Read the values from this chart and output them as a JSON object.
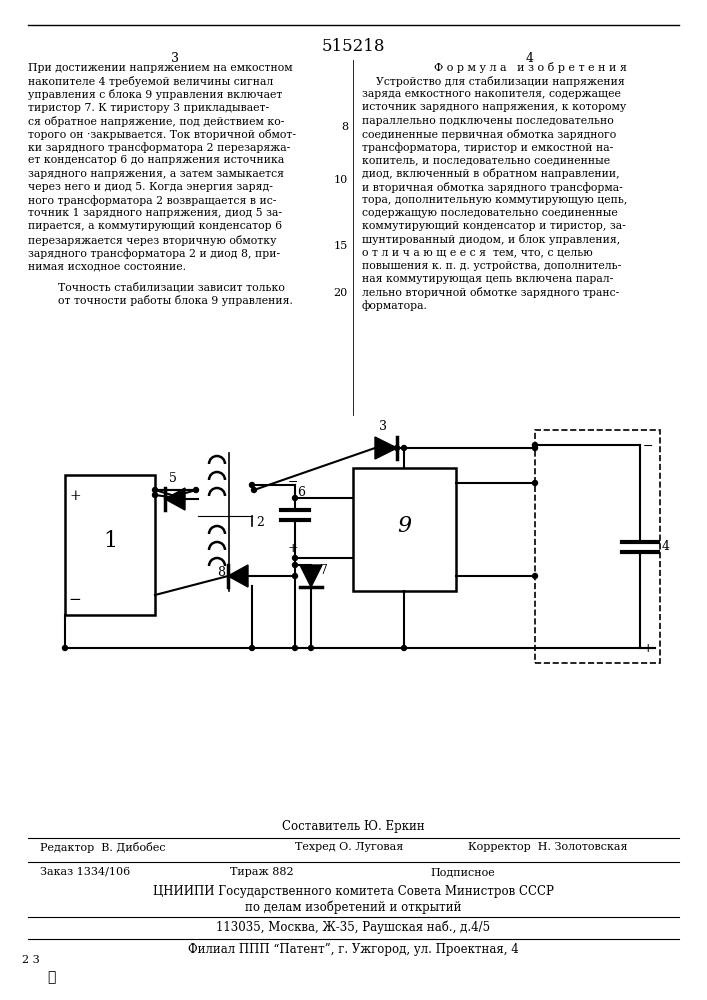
{
  "title": "515218",
  "page_left": "3",
  "page_right": "4",
  "col2_header": "Ф о р м у л а   и з о б р е т е н и я",
  "col1_lines": [
    "При достижении напряжением на емкостном",
    "накопителе 4 требуемой величины сигнал",
    "управления с блока 9 управления включает",
    "тиристор 7. К тиристору 3 прикладывает-",
    "ся обратное напряжение, под действием ко-",
    "торого он ·закрывается. Ток вторичной обмот-",
    "ки зарядного трансформатора 2 перезаряжа-",
    "ет конденсатор 6 до напряжения источника",
    "зарядного напряжения, а затем замыкается",
    "через него и диод 5. Когда энергия заряд-",
    "ного трансформатора 2 возвращается в ис-",
    "точник 1 зарядного напряжения, диод 5 за-",
    "пирается, а коммутирующий конденсатор 6",
    "перезаряжается через вторичную обмотку",
    "зарядного трансформатора 2 и диод 8, при-",
    "нимая исходное состояние."
  ],
  "col1_footer_lines": [
    "Точность стабилизации зависит только",
    "от точности работы блока 9 управления."
  ],
  "col2_lines": [
    "    Устройство для стабилизации напряжения",
    "заряда емкостного накопителя, содержащее",
    "источник зарядного напряжения, к которому",
    "параллельно подключены последовательно",
    "соединенные первичная обмотка зарядного",
    "трансформатора, тиристор и емкостной на-",
    "копитель, и последовательно соединенные",
    "диод, включенный в обратном направлении,",
    "и вторичная обмотка зарядного трансформа-",
    "тора, дополнительную коммутирующую цепь,",
    "содержащую последовательно соединенные",
    "коммутирующий конденсатор и тиристор, за-",
    "шунтированный диодом, и блок управления,",
    "о т л и ч а ю щ е е с я  тем, что, с целью",
    "повышения к. п. д. устройства, дополнитель-",
    "ная коммутирующая цепь включена парал-",
    "лельно вторичной обмотке зарядного транс-",
    "форматора."
  ],
  "line_numbers": [
    [
      8,
      5
    ],
    [
      10,
      9
    ],
    [
      15,
      14
    ],
    [
      20,
      19
    ]
  ],
  "bottom_line1": "Составитель Ю. Еркин",
  "bottom_line2_left": "Редактор  В. Дибобес",
  "bottom_line2_mid": "Техред О. Луговая",
  "bottom_line2_right": "Корректор  Н. Золотовская",
  "bottom_line3_left": "Заказ 1334/106",
  "bottom_line3_mid": "Тираж 882",
  "bottom_line3_right": "Подписное",
  "bottom_line4": "ЦНИИПИ Государственного комитета Совета Министров СССР",
  "bottom_line5": "по делам изобретений и открытий",
  "bottom_line6": "113035, Москва, Ж-35, Раушская наб., д.4/5",
  "bottom_line7": "Филиал ППП “Патент”, г. Ужгород, ул. Проектная, 4",
  "bg_color": "#ffffff"
}
